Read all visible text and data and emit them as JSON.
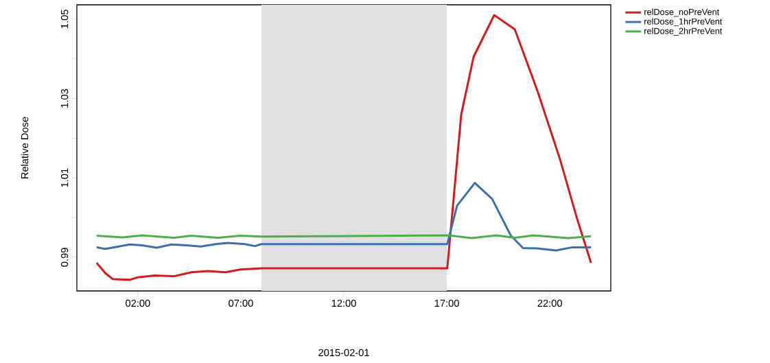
{
  "chart_data": {
    "type": "line",
    "xlabel": "2015-02-01",
    "ylabel": "Relative Dose",
    "xlim": [
      -0.96,
      24.96
    ],
    "ylim": [
      0.9815,
      1.0536
    ],
    "xticks": [
      {
        "value": 2,
        "label": "02:00"
      },
      {
        "value": 7,
        "label": "07:00"
      },
      {
        "value": 12,
        "label": "12:00"
      },
      {
        "value": 17,
        "label": "17:00"
      },
      {
        "value": 22,
        "label": "22:00"
      }
    ],
    "yticks": [
      0.99,
      {
        "value": 1.0,
        "label": null
      },
      1.01,
      {
        "value": 1.02,
        "label": null
      },
      1.03,
      {
        "value": 1.04,
        "label": null
      },
      1.05
    ],
    "bands": [
      {
        "axis": "x",
        "from": 8,
        "to": 17,
        "color": "#e0e0e0"
      }
    ],
    "legend": "top right",
    "grid": false,
    "marker": "none",
    "line_style": "solid",
    "series": [
      {
        "name": "relDose_noPreVent",
        "color": "#d7191c",
        "x": [
          0,
          0.42,
          0.78,
          1.6,
          1.97,
          2.8,
          3.75,
          4.6,
          5.4,
          6.25,
          6.97,
          8.0,
          17.0,
          17.02,
          17.3,
          17.5,
          17.7,
          18.3,
          19.3,
          20.3,
          21.4,
          22.5,
          23.3,
          24.0
        ],
        "values": [
          0.9886,
          0.986,
          0.9845,
          0.9843,
          0.9849,
          0.9854,
          0.9852,
          0.9862,
          0.9865,
          0.9862,
          0.9869,
          0.9872,
          0.9872,
          0.9872,
          1.003,
          1.0146,
          1.026,
          1.0405,
          1.051,
          1.0474,
          1.0319,
          1.0146,
          1.0001,
          0.9886
        ]
      },
      {
        "name": "relDose_1hrPreVent",
        "color": "#3a6fb0",
        "x": [
          0,
          0.42,
          1.61,
          2.2,
          2.92,
          3.63,
          4.35,
          5.06,
          5.78,
          6.37,
          7.2,
          7.68,
          8.0,
          16.97,
          17.02,
          17.5,
          18.36,
          19.2,
          20.1,
          20.7,
          21.4,
          22.3,
          23.1,
          24.0
        ],
        "values": [
          0.9925,
          0.9921,
          0.9932,
          0.993,
          0.9924,
          0.9932,
          0.993,
          0.9927,
          0.9933,
          0.9936,
          0.9933,
          0.9928,
          0.9933,
          0.9933,
          0.9933,
          1.003,
          1.0087,
          1.0047,
          0.9955,
          0.9923,
          0.9922,
          0.9917,
          0.9925,
          0.9925
        ]
      },
      {
        "name": "relDose_2hrPreVent",
        "color": "#4daf4a",
        "x": [
          0,
          1.27,
          2.2,
          3.75,
          4.58,
          5.89,
          6.96,
          8.0,
          17.1,
          18.2,
          19.4,
          20.3,
          21.2,
          22.9,
          24.0
        ],
        "values": [
          0.9954,
          0.995,
          0.9955,
          0.9949,
          0.9954,
          0.9949,
          0.9954,
          0.9952,
          0.9955,
          0.9948,
          0.9955,
          0.9949,
          0.9955,
          0.9948,
          0.9953
        ]
      }
    ]
  }
}
